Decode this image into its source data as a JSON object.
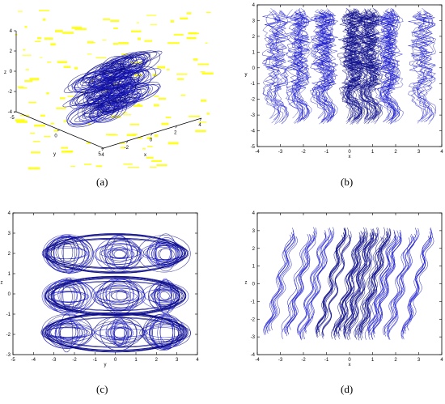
{
  "colors": {
    "trajectory": "#1a1acc",
    "trajectory_dark": "#0a0a8a",
    "axes": "#000000",
    "speckle": "#ffff00"
  },
  "chart_data": [
    {
      "panel": "(a)",
      "type": "scatter",
      "projection": "3d",
      "xlabel": "x",
      "ylabel": "y",
      "zlabel": "z",
      "x_ticks": [
        "-4",
        "-2",
        "0",
        "2",
        "4"
      ],
      "y_ticks": [
        "-5",
        "0",
        "5"
      ],
      "z_ticks": [
        "4",
        "2",
        "0",
        "-2",
        "-4"
      ],
      "xlim": [
        -4,
        4
      ],
      "ylim": [
        -5,
        5
      ],
      "zlim": [
        -4,
        4
      ],
      "attractor": {
        "x_centers": [
          -1,
          0,
          1
        ],
        "y_centers": [
          -2,
          0,
          2
        ],
        "z_centers": [
          -2,
          0,
          2
        ]
      }
    },
    {
      "panel": "(b)",
      "type": "scatter",
      "xlabel": "x",
      "ylabel": "y",
      "xlim": [
        -4,
        4
      ],
      "ylim": [
        -5,
        4
      ],
      "x_ticks": [
        "-4",
        "-3",
        "-2",
        "-1",
        "0",
        "1",
        "2",
        "3",
        "4"
      ],
      "y_ticks": [
        "4",
        "3",
        "2",
        "1",
        "0",
        "-1",
        "-2",
        "-3",
        "-4",
        "-5"
      ],
      "grid": false,
      "bands_x": [
        -3.2,
        -2.2,
        -1.1,
        0.1,
        0.85,
        1.7,
        3.2
      ],
      "band_weights": [
        0.25,
        0.5,
        0.7,
        1.0,
        1.0,
        0.7,
        0.25
      ],
      "y_range": [
        -3.6,
        3.8
      ]
    },
    {
      "panel": "(c)",
      "type": "scatter",
      "xlabel": "y",
      "ylabel": "z",
      "xlim": [
        -5,
        4
      ],
      "ylim": [
        -3,
        4
      ],
      "x_ticks": [
        "-5",
        "-4",
        "-3",
        "-2",
        "-1",
        "0",
        "1",
        "2",
        "3",
        "4"
      ],
      "y_ticks": [
        "4",
        "3",
        "2",
        "1",
        "0",
        "-1",
        "-2",
        "-3"
      ],
      "grid": false,
      "scroll_centers_y": [
        -2.3,
        0.2,
        2.4
      ],
      "scroll_centers_z": [
        -1.9,
        -0.1,
        2.0
      ]
    },
    {
      "panel": "(d)",
      "type": "scatter",
      "xlabel": "x",
      "ylabel": "z",
      "xlim": [
        -4,
        4
      ],
      "ylim": [
        -4,
        4
      ],
      "x_ticks": [
        "-4",
        "-3",
        "-2",
        "-1",
        "0",
        "1",
        "2",
        "3",
        "4"
      ],
      "y_ticks": [
        "4",
        "3",
        "2",
        "1",
        "0",
        "-1",
        "-2",
        "-3",
        "-4"
      ],
      "grid": false,
      "strip_x": [
        -3.0,
        -2.2,
        -1.5,
        -0.7,
        0.0,
        0.5,
        1.0,
        1.5,
        2.2,
        3.0
      ],
      "strip_weights": [
        0.4,
        0.5,
        0.6,
        0.9,
        1.0,
        1.0,
        0.9,
        0.8,
        0.5,
        0.4
      ],
      "strip_slope": -0.55
    }
  ]
}
